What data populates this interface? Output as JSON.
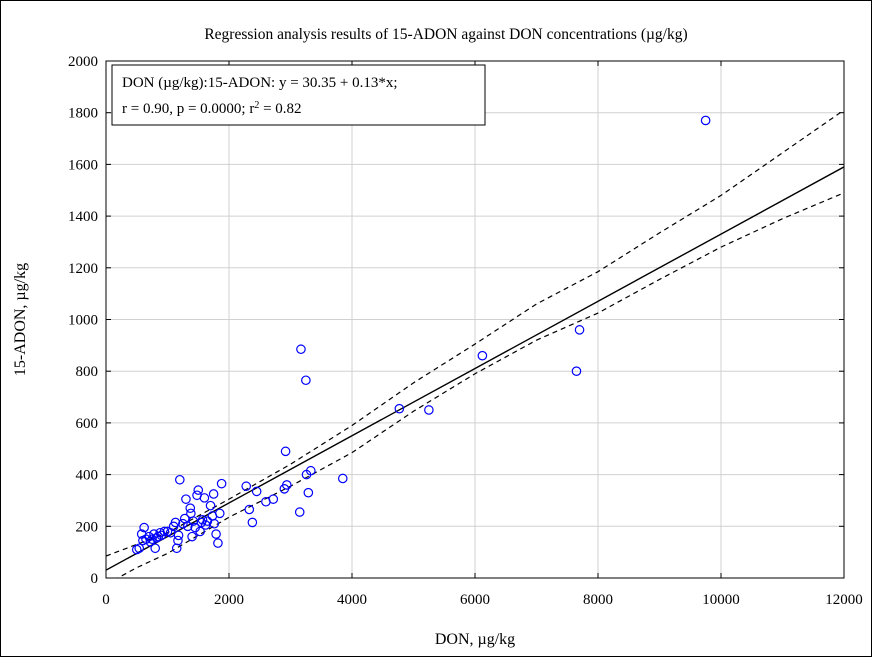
{
  "chart_data": {
    "type": "scatter",
    "title": "Regression analysis results of 15-ADON against DON concentrations (µg/kg)",
    "xlabel": "DON, µg/kg",
    "ylabel": "15-ADON, µg/kg",
    "xlim": [
      0,
      12000
    ],
    "ylim": [
      0,
      2000
    ],
    "xticks": [
      0,
      2000,
      4000,
      6000,
      8000,
      10000,
      12000
    ],
    "yticks": [
      0,
      200,
      400,
      600,
      800,
      1000,
      1200,
      1400,
      1600,
      1800,
      2000
    ],
    "grid": true,
    "annotation": {
      "line1": "DON (µg/kg):15-ADON:   y = 30.35 + 0.13*x;",
      "line2_prefix": "r = 0.90, p = 0.0000; r",
      "line2_sup": "2",
      "line2_suffix": " = 0.82",
      "position": "top-left"
    },
    "regression": {
      "intercept": 30.35,
      "slope": 0.13
    },
    "confidence_band": {
      "x": [
        0,
        500,
        1000,
        2000,
        3000,
        4000,
        5000,
        6000,
        7000,
        8000,
        9000,
        10000,
        11000,
        12000
      ],
      "upper": [
        85,
        130,
        175,
        305,
        440,
        590,
        755,
        905,
        1060,
        1185,
        1335,
        1480,
        1645,
        1810
      ],
      "lower": [
        -25,
        40,
        95,
        235,
        355,
        485,
        645,
        790,
        920,
        1025,
        1155,
        1280,
        1390,
        1490
      ]
    },
    "marker_color": "#0000ff",
    "points": [
      [
        500,
        110
      ],
      [
        540,
        115
      ],
      [
        580,
        170
      ],
      [
        600,
        145
      ],
      [
        620,
        195
      ],
      [
        650,
        150
      ],
      [
        700,
        160
      ],
      [
        720,
        140
      ],
      [
        750,
        150
      ],
      [
        780,
        170
      ],
      [
        800,
        115
      ],
      [
        820,
        155
      ],
      [
        850,
        160
      ],
      [
        880,
        175
      ],
      [
        900,
        165
      ],
      [
        950,
        180
      ],
      [
        1000,
        180
      ],
      [
        1050,
        175
      ],
      [
        1100,
        200
      ],
      [
        1130,
        215
      ],
      [
        1150,
        115
      ],
      [
        1170,
        145
      ],
      [
        1180,
        165
      ],
      [
        1200,
        380
      ],
      [
        1250,
        210
      ],
      [
        1280,
        230
      ],
      [
        1300,
        305
      ],
      [
        1330,
        200
      ],
      [
        1370,
        270
      ],
      [
        1380,
        250
      ],
      [
        1400,
        160
      ],
      [
        1420,
        220
      ],
      [
        1450,
        195
      ],
      [
        1480,
        320
      ],
      [
        1500,
        340
      ],
      [
        1530,
        180
      ],
      [
        1550,
        215
      ],
      [
        1570,
        225
      ],
      [
        1600,
        310
      ],
      [
        1620,
        205
      ],
      [
        1650,
        220
      ],
      [
        1700,
        280
      ],
      [
        1730,
        240
      ],
      [
        1750,
        325
      ],
      [
        1760,
        210
      ],
      [
        1790,
        170
      ],
      [
        1820,
        135
      ],
      [
        1850,
        250
      ],
      [
        1880,
        365
      ],
      [
        2280,
        355
      ],
      [
        2330,
        265
      ],
      [
        2380,
        215
      ],
      [
        2450,
        335
      ],
      [
        2600,
        295
      ],
      [
        2720,
        305
      ],
      [
        2900,
        345
      ],
      [
        2920,
        490
      ],
      [
        2940,
        360
      ],
      [
        3150,
        255
      ],
      [
        3170,
        885
      ],
      [
        3250,
        765
      ],
      [
        3260,
        400
      ],
      [
        3290,
        330
      ],
      [
        3330,
        415
      ],
      [
        3850,
        385
      ],
      [
        4770,
        655
      ],
      [
        5250,
        650
      ],
      [
        6120,
        860
      ],
      [
        7650,
        800
      ],
      [
        7700,
        960
      ],
      [
        9750,
        1770
      ]
    ]
  }
}
